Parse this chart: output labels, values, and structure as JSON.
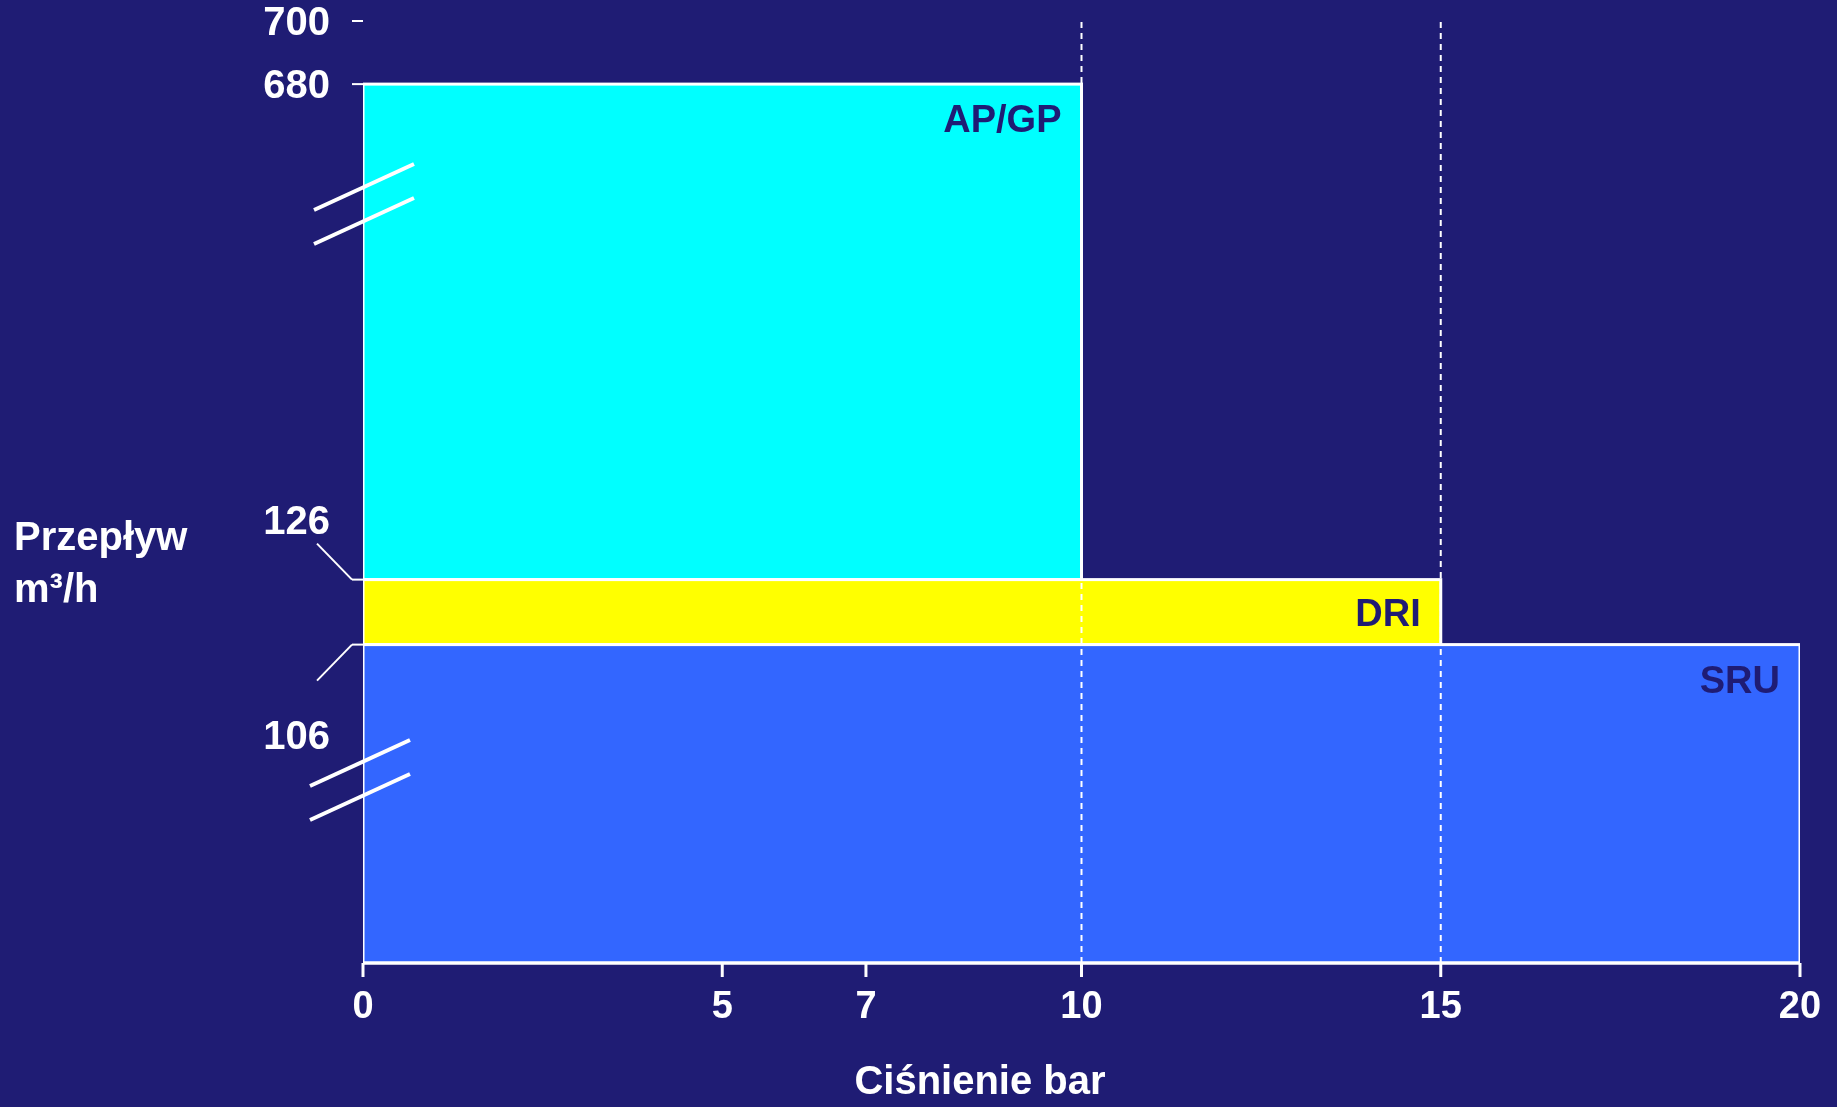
{
  "chart_data": {
    "type": "bar",
    "orientation": "horizontal",
    "xlabel": "Ciśnienie bar",
    "ylabel": "Przepływ m³/h",
    "categories": [
      "AP/GP",
      "DRI",
      "SRU"
    ],
    "values": [
      10,
      15,
      20
    ],
    "colors": [
      "#00ffff",
      "#ffff00",
      "#3366ff"
    ],
    "xlim": [
      0,
      20
    ],
    "xticks": [
      0,
      5,
      7,
      10,
      15,
      20
    ],
    "annotations": [
      "700",
      "680",
      "126",
      "106"
    ],
    "ref_lines": [
      {
        "axis": "x",
        "value": 10,
        "color": "#ffffff",
        "line_style": "dashed"
      },
      {
        "axis": "x",
        "value": 15,
        "color": "#ffffff",
        "line_style": "dashed"
      }
    ]
  }
}
